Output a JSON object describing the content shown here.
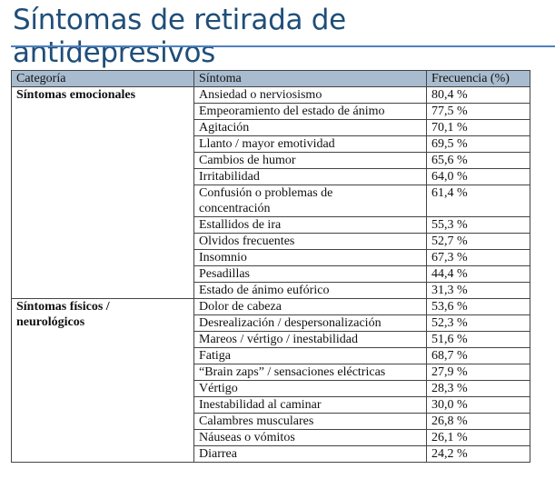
{
  "header": {
    "title": "Síntomas de retirada de antidepresivos"
  },
  "table": {
    "columns": [
      "Categoría",
      "Síntoma",
      "Frecuencia (%)"
    ],
    "groups": [
      {
        "category": "Síntomas emocionales",
        "rows": [
          [
            "Ansiedad o nerviosismo",
            "80,4 %"
          ],
          [
            "Empeoramiento del estado de ánimo",
            "77,5 %"
          ],
          [
            "Agitación",
            "70,1 %"
          ],
          [
            "Llanto / mayor emotividad",
            "69,5 %"
          ],
          [
            "Cambios de humor",
            "65,6 %"
          ],
          [
            "Irritabilidad",
            "64,0 %"
          ],
          [
            "Confusión o problemas de concentración",
            "61,4 %"
          ],
          [
            "Estallidos de ira",
            "55,3 %"
          ],
          [
            "Olvidos frecuentes",
            "52,7 %"
          ],
          [
            "Insomnio",
            "67,3 %"
          ],
          [
            "Pesadillas",
            "44,4 %"
          ],
          [
            "Estado de ánimo eufórico",
            "31,3 %"
          ]
        ]
      },
      {
        "category": "Síntomas físicos / neurológicos",
        "rows": [
          [
            "Dolor de cabeza",
            "53,6 %"
          ],
          [
            "Desrealización / despersonalización",
            "52,3 %"
          ],
          [
            "Mareos / vértigo / inestabilidad",
            "51,6 %"
          ],
          [
            "Fatiga",
            "68,7 %"
          ],
          [
            "“Brain zaps” / sensaciones eléctricas",
            "27,9 %"
          ],
          [
            "Vértigo",
            "28,3 %"
          ],
          [
            "Inestabilidad al caminar",
            "30,0 %"
          ],
          [
            "Calambres musculares",
            "26,8 %"
          ],
          [
            "Náuseas o vómitos",
            "26,1 %"
          ],
          [
            "Diarrea",
            "24,2 %"
          ]
        ]
      }
    ]
  }
}
